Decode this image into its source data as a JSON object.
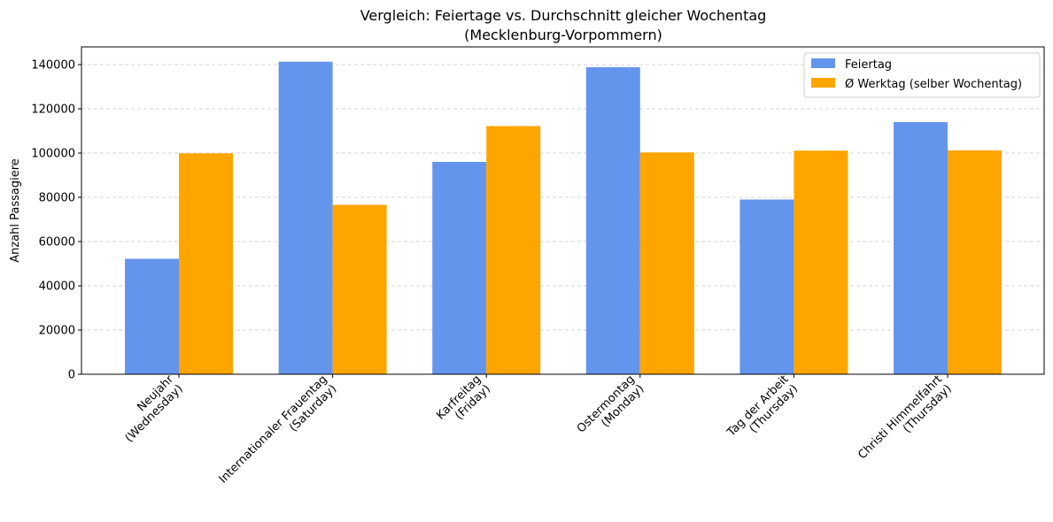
{
  "chart_data": {
    "type": "bar",
    "title_lines": [
      "Vergleich: Feiertage vs. Durchschnitt gleicher Wochentag",
      "(Mecklenburg-Vorpommern)"
    ],
    "xlabel": "",
    "ylabel": "Anzahl Passagiere",
    "ylim": [
      0,
      148000
    ],
    "yticks": [
      0,
      20000,
      40000,
      60000,
      80000,
      100000,
      120000,
      140000
    ],
    "grid": "y-dashed",
    "legend_placement": "top-right",
    "categories": [
      [
        "Neujahr",
        "(Wednesday)"
      ],
      [
        "Internationaler Frauentag",
        "(Saturday)"
      ],
      [
        "Karfreitag",
        "(Friday)"
      ],
      [
        "Ostermontag",
        "(Monday)"
      ],
      [
        "Tag der Arbeit",
        "(Thursday)"
      ],
      [
        "Christi Himmelfahrt",
        "(Thursday)"
      ]
    ],
    "series": [
      {
        "name": "Feiertag",
        "color": "#6495ED",
        "values": [
          52200,
          141300,
          96000,
          138800,
          79000,
          114000
        ]
      },
      {
        "name": "Ø Werktag (selber Wochentag)",
        "color": "#FFA500",
        "values": [
          99900,
          76600,
          112200,
          100300,
          101100,
          101200
        ]
      }
    ]
  }
}
